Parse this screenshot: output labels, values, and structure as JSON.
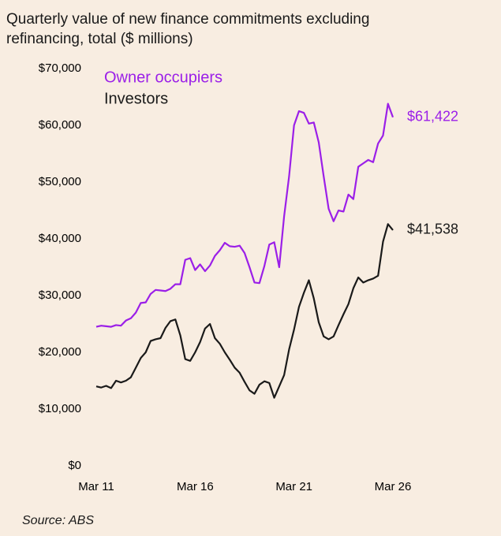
{
  "chart_data": {
    "type": "line",
    "title": "Quarterly value of new finance commitments excluding refinancing, total ($ millions)",
    "source": "Source: ABS",
    "categories": [
      "Mar 11",
      null,
      null,
      null,
      null,
      null,
      null,
      null,
      null,
      null,
      null,
      null,
      null,
      null,
      null,
      null,
      null,
      null,
      null,
      null,
      "Mar 16",
      null,
      null,
      null,
      null,
      null,
      null,
      null,
      null,
      null,
      null,
      null,
      null,
      null,
      null,
      null,
      null,
      null,
      null,
      null,
      "Mar 21",
      null,
      null,
      null,
      null,
      null,
      null,
      null,
      null,
      null,
      null,
      null,
      null,
      null,
      null,
      null,
      null,
      null,
      null,
      null,
      "Mar 26"
    ],
    "series": [
      {
        "name": "Owner occupiers",
        "color": "#9b1fe8",
        "values": [
          24500,
          24700,
          24600,
          24500,
          24800,
          24700,
          25600,
          26000,
          27000,
          28700,
          28800,
          30300,
          31000,
          30900,
          30800,
          31200,
          32000,
          32000,
          36300,
          36600,
          34500,
          35500,
          34300,
          35300,
          37000,
          38000,
          39300,
          38700,
          38600,
          38800,
          37500,
          35000,
          32300,
          32200,
          35200,
          39000,
          39400,
          35000,
          44000,
          51000,
          60000,
          62500,
          62200,
          60300,
          60500,
          57000,
          51000,
          45300,
          43100,
          45000,
          44800,
          47800,
          47000,
          52700,
          53300,
          53900,
          53500,
          56800,
          58200,
          63800,
          61422
        ],
        "value_labels": [
          null,
          null,
          null,
          null,
          null,
          null,
          null,
          null,
          null,
          null,
          null,
          null,
          null,
          null,
          null,
          null,
          null,
          null,
          null,
          null,
          null,
          null,
          null,
          null,
          null,
          null,
          null,
          null,
          null,
          null,
          null,
          null,
          null,
          null,
          null,
          null,
          null,
          null,
          null,
          null,
          null,
          null,
          null,
          null,
          null,
          null,
          null,
          null,
          null,
          null,
          null,
          null,
          null,
          null,
          null,
          null,
          null,
          null,
          null,
          null,
          "$61,422"
        ]
      },
      {
        "name": "Investors",
        "color": "#1a1a1a",
        "values": [
          14000,
          13800,
          14100,
          13700,
          15000,
          14700,
          15000,
          15600,
          17300,
          19000,
          20000,
          22000,
          22300,
          22500,
          24300,
          25500,
          25800,
          23000,
          18800,
          18500,
          20000,
          21800,
          24200,
          25000,
          22500,
          21500,
          20000,
          18700,
          17300,
          16400,
          14800,
          13300,
          12700,
          14300,
          14900,
          14600,
          12000,
          14000,
          16000,
          20500,
          24000,
          28000,
          30500,
          32700,
          29500,
          25300,
          22800,
          22300,
          22800,
          24800,
          26700,
          28500,
          31300,
          33200,
          32300,
          32700,
          33000,
          33500,
          39500,
          42600,
          41538
        ],
        "value_labels": [
          null,
          null,
          null,
          null,
          null,
          null,
          null,
          null,
          null,
          null,
          null,
          null,
          null,
          null,
          null,
          null,
          null,
          null,
          null,
          null,
          null,
          null,
          null,
          null,
          null,
          null,
          null,
          null,
          null,
          null,
          null,
          null,
          null,
          null,
          null,
          null,
          null,
          null,
          null,
          null,
          null,
          null,
          null,
          null,
          null,
          null,
          null,
          null,
          null,
          null,
          null,
          null,
          null,
          null,
          null,
          null,
          null,
          null,
          null,
          null,
          "$41,538"
        ]
      }
    ],
    "ylim": [
      0,
      70000
    ],
    "yticks": [
      {
        "value": 0,
        "label": "$0"
      },
      {
        "value": 10000,
        "label": "$10,000"
      },
      {
        "value": 20000,
        "label": "$20,000"
      },
      {
        "value": 30000,
        "label": "$30,000"
      },
      {
        "value": 40000,
        "label": "$40,000"
      },
      {
        "value": 50000,
        "label": "$50,000"
      },
      {
        "value": 60000,
        "label": "$60,000"
      },
      {
        "value": 70000,
        "label": "$70,000"
      }
    ],
    "grid": false,
    "legend": "top-left"
  }
}
